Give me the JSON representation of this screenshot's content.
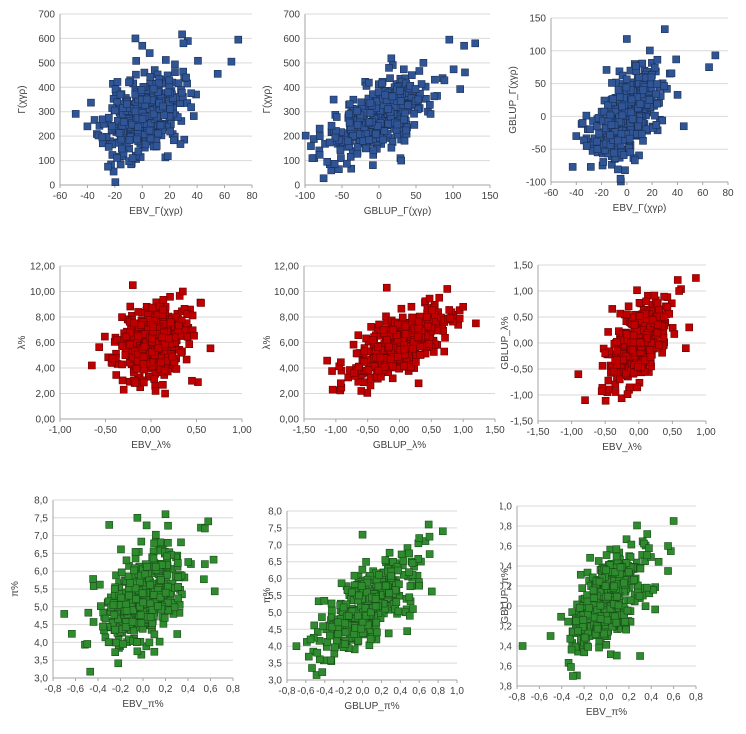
{
  "chart_data": [
    {
      "id": "gamma-ebv",
      "type": "scatter",
      "title": "",
      "xlabel": "EBV_Γ(χγρ)",
      "ylabel": "Γ(χγρ)",
      "xlim": [
        -60,
        80
      ],
      "ylim": [
        0,
        700
      ],
      "xticks": [
        -60,
        -40,
        -20,
        0,
        20,
        40,
        60,
        80
      ],
      "yticks": [
        0,
        100,
        200,
        300,
        400,
        500,
        600,
        700
      ],
      "xtick_labels": [
        "-60",
        "-40",
        "-20",
        "0",
        "20",
        "40",
        "60",
        "80"
      ],
      "ytick_labels": [
        "0",
        "100",
        "200",
        "300",
        "400",
        "500",
        "600",
        "700"
      ],
      "color": "#2f5597",
      "cloud": {
        "n": 400,
        "mx": 0,
        "sx": 14,
        "my": 280,
        "sy": 85,
        "r": 0.35,
        "seed": 11
      },
      "points": [
        [
          70,
          595
        ],
        [
          65,
          505
        ],
        [
          30,
          580
        ],
        [
          0,
          570
        ],
        [
          -40,
          240
        ],
        [
          -25,
          75
        ],
        [
          55,
          455
        ],
        [
          -5,
          600
        ]
      ]
    },
    {
      "id": "gamma-gblup",
      "type": "scatter",
      "title": "",
      "xlabel": "GBLUP_Γ(χγρ)",
      "ylabel": "Γ(χγρ)",
      "xlim": [
        -100,
        150
      ],
      "ylim": [
        0,
        700
      ],
      "xticks": [
        -100,
        -50,
        0,
        50,
        100,
        150
      ],
      "yticks": [
        0,
        100,
        200,
        300,
        400,
        500,
        600,
        700
      ],
      "xtick_labels": [
        "-100",
        "-50",
        "0",
        "50",
        "100",
        "150"
      ],
      "ytick_labels": [
        "0",
        "100",
        "200",
        "300",
        "400",
        "500",
        "600",
        "700"
      ],
      "color": "#2f5597",
      "cloud": {
        "n": 400,
        "mx": 0,
        "sx": 35,
        "my": 280,
        "sy": 85,
        "r": 0.65,
        "seed": 22
      },
      "points": [
        [
          130,
          580
        ],
        [
          95,
          595
        ],
        [
          115,
          570
        ],
        [
          -90,
          110
        ],
        [
          -80,
          200
        ],
        [
          60,
          500
        ],
        [
          30,
          100
        ],
        [
          -70,
          95
        ]
      ]
    },
    {
      "id": "gamma-gblup-vs-ebv",
      "type": "scatter",
      "title": "",
      "xlabel": "EBV_Γ(χγρ)",
      "ylabel": "GBLUP_Γ(χγρ)",
      "xlim": [
        -60,
        80
      ],
      "ylim": [
        -100,
        150
      ],
      "xticks": [
        -60,
        -40,
        -20,
        0,
        20,
        40,
        60,
        80
      ],
      "yticks": [
        -100,
        -50,
        0,
        50,
        100,
        150
      ],
      "xtick_labels": [
        "-60",
        "-40",
        "-20",
        "0",
        "20",
        "40",
        "60",
        "80"
      ],
      "ytick_labels": [
        "-100",
        "-50",
        "0",
        "50",
        "100",
        "150"
      ],
      "color": "#2f5597",
      "cloud": {
        "n": 400,
        "mx": 0,
        "sx": 14,
        "my": 0,
        "sy": 35,
        "r": 0.55,
        "seed": 33
      },
      "points": [
        [
          30,
          133
        ],
        [
          0,
          118
        ],
        [
          70,
          93
        ],
        [
          65,
          75
        ],
        [
          -40,
          -30
        ],
        [
          -5,
          -95
        ],
        [
          45,
          -15
        ],
        [
          -35,
          -10
        ]
      ]
    },
    {
      "id": "lambda-ebv",
      "type": "scatter",
      "title": "",
      "xlabel": "EBV_λ%",
      "ylabel": "λ%",
      "xlim": [
        -1.0,
        1.0
      ],
      "ylim": [
        0,
        12
      ],
      "xticks": [
        -1.0,
        -0.5,
        0.0,
        0.5,
        1.0
      ],
      "yticks": [
        0,
        2,
        4,
        6,
        8,
        10,
        12
      ],
      "xtick_labels": [
        "-1,00",
        "-0,50",
        "0,00",
        "0,50",
        "1,00"
      ],
      "ytick_labels": [
        "0,00",
        "2,00",
        "4,00",
        "6,00",
        "8,00",
        "10,00",
        "12,00"
      ],
      "color": "#c00000",
      "cloud": {
        "n": 400,
        "mx": 0,
        "sx": 0.2,
        "my": 5.8,
        "sy": 1.4,
        "r": 0.35,
        "seed": 44
      },
      "points": [
        [
          -0.65,
          4.2
        ],
        [
          0.45,
          3.0
        ],
        [
          0.55,
          9.1
        ],
        [
          -0.2,
          10.5
        ],
        [
          0.35,
          10.0
        ],
        [
          -0.3,
          2.3
        ],
        [
          0.05,
          2.2
        ]
      ]
    },
    {
      "id": "lambda-gblup",
      "type": "scatter",
      "title": "",
      "xlabel": "GBLUP_λ%",
      "ylabel": "λ%",
      "xlim": [
        -1.5,
        1.5
      ],
      "ylim": [
        0,
        12
      ],
      "xticks": [
        -1.5,
        -1.0,
        -0.5,
        0.0,
        0.5,
        1.0,
        1.5
      ],
      "yticks": [
        0,
        2,
        4,
        6,
        8,
        10,
        12
      ],
      "xtick_labels": [
        "-1,50",
        "-1,00",
        "-0,50",
        "0,00",
        "0,50",
        "1,00",
        "1,50"
      ],
      "ytick_labels": [
        "0,00",
        "2,00",
        "4,00",
        "6,00",
        "8,00",
        "10,00",
        "12,00"
      ],
      "color": "#c00000",
      "cloud": {
        "n": 400,
        "mx": 0,
        "sx": 0.38,
        "my": 5.8,
        "sy": 1.4,
        "r": 0.65,
        "seed": 55
      },
      "points": [
        [
          -1.05,
          2.3
        ],
        [
          1.2,
          7.5
        ],
        [
          0.75,
          10.2
        ],
        [
          -0.2,
          10.3
        ],
        [
          -0.6,
          2.2
        ],
        [
          0.3,
          2.8
        ],
        [
          1.0,
          8.8
        ]
      ]
    },
    {
      "id": "lambda-gblup-vs-ebv",
      "type": "scatter",
      "title": "",
      "xlabel": "EBV_λ%",
      "ylabel": "GBLUP_λ%",
      "xlim": [
        -1.5,
        1.0
      ],
      "ylim": [
        -1.5,
        1.5
      ],
      "xticks": [
        -1.5,
        -1.0,
        -0.5,
        0.0,
        0.5,
        1.0
      ],
      "yticks": [
        -1.5,
        -1.0,
        -0.5,
        0.0,
        0.5,
        1.0,
        1.5
      ],
      "xtick_labels": [
        "-1,50",
        "-1,00",
        "-0,50",
        "0,00",
        "0,50",
        "1,00"
      ],
      "ytick_labels": [
        "-1,50",
        "-1,00",
        "-0,50",
        "0,00",
        "0,50",
        "1,00",
        "1,50"
      ],
      "color": "#c00000",
      "cloud": {
        "n": 400,
        "mx": 0,
        "sx": 0.2,
        "my": 0,
        "sy": 0.38,
        "r": 0.6,
        "seed": 66
      },
      "points": [
        [
          0.85,
          1.25
        ],
        [
          -0.8,
          -1.1
        ],
        [
          -0.9,
          -0.6
        ],
        [
          0.6,
          1.0
        ],
        [
          0.75,
          0.3
        ],
        [
          -0.5,
          -0.2
        ],
        [
          0.7,
          -0.1
        ]
      ]
    },
    {
      "id": "pi-ebv",
      "type": "scatter",
      "title": "",
      "xlabel": "EBV_π%",
      "ylabel": "π%",
      "xlim": [
        -0.8,
        0.8
      ],
      "ylim": [
        3.0,
        8.0
      ],
      "xticks": [
        -0.8,
        -0.6,
        -0.4,
        -0.2,
        0.0,
        0.2,
        0.4,
        0.6,
        0.8
      ],
      "yticks": [
        3.0,
        3.5,
        4.0,
        4.5,
        5.0,
        5.5,
        6.0,
        6.5,
        7.0,
        7.5,
        8.0
      ],
      "xtick_labels": [
        "-0,8",
        "-0,6",
        "-0,4",
        "-0,2",
        "0,0",
        "0,2",
        "0,4",
        "0,6",
        "0,8"
      ],
      "ytick_labels": [
        "3,0",
        "3,5",
        "4,0",
        "4,5",
        "5,0",
        "5,5",
        "6,0",
        "6,5",
        "7,0",
        "7,5",
        "8,0"
      ],
      "color": "#2e8b2e",
      "cloud": {
        "n": 400,
        "mx": 0,
        "sx": 0.18,
        "my": 5.2,
        "sy": 0.75,
        "r": 0.4,
        "seed": 77
      },
      "points": [
        [
          0.58,
          7.4
        ],
        [
          0.55,
          7.2
        ],
        [
          0.2,
          7.6
        ],
        [
          -0.3,
          7.3
        ],
        [
          -0.7,
          4.8
        ],
        [
          -0.05,
          7.5
        ],
        [
          -0.05,
          3.75
        ],
        [
          0.55,
          6.2
        ]
      ]
    },
    {
      "id": "pi-gblup",
      "type": "scatter",
      "title": "",
      "xlabel": "GBLUP_π%",
      "ylabel": "π%",
      "xlim": [
        -0.8,
        1.0
      ],
      "ylim": [
        3.0,
        8.0
      ],
      "xticks": [
        -0.8,
        -0.6,
        -0.4,
        -0.2,
        0.0,
        0.2,
        0.4,
        0.6,
        0.8,
        1.0
      ],
      "yticks": [
        3.0,
        3.5,
        4.0,
        4.5,
        5.0,
        5.5,
        6.0,
        6.5,
        7.0,
        7.5,
        8.0
      ],
      "xtick_labels": [
        "-0,8",
        "-0,6",
        "-0,4",
        "-0,2",
        "0,0",
        "0,2",
        "0,4",
        "0,6",
        "0,8",
        "1,0"
      ],
      "ytick_labels": [
        "3,0",
        "3,5",
        "4,0",
        "4,5",
        "5,0",
        "5,5",
        "6,0",
        "6,5",
        "7,0",
        "7,5",
        "8,0"
      ],
      "color": "#2e8b2e",
      "cloud": {
        "n": 400,
        "mx": 0.05,
        "sx": 0.25,
        "my": 5.2,
        "sy": 0.75,
        "r": 0.7,
        "seed": 88
      },
      "points": [
        [
          0.7,
          7.6
        ],
        [
          0.85,
          7.4
        ],
        [
          0.6,
          7.2
        ],
        [
          -0.7,
          4.0
        ],
        [
          -0.55,
          4.2
        ],
        [
          0.0,
          7.3
        ],
        [
          0.5,
          4.9
        ]
      ]
    },
    {
      "id": "pi-gblup-vs-ebv",
      "type": "scatter",
      "title": "",
      "xlabel": "EBV_π%",
      "ylabel": "GBLUP_π%",
      "xlim": [
        -0.8,
        0.8
      ],
      "ylim": [
        -0.8,
        1.0
      ],
      "xticks": [
        -0.8,
        -0.6,
        -0.4,
        -0.2,
        0.0,
        0.2,
        0.4,
        0.6,
        0.8
      ],
      "yticks": [
        -0.8,
        -0.6,
        -0.4,
        -0.2,
        0.0,
        0.2,
        0.4,
        0.6,
        0.8,
        1.0
      ],
      "xtick_labels": [
        "-0,8",
        "-0,6",
        "-0,4",
        "-0,2",
        "0,0",
        "0,2",
        "0,4",
        "0,6",
        "0,8"
      ],
      "ytick_labels": [
        "-0,8",
        "-0,6",
        "-0,4",
        "-0,2",
        "0,0",
        "0,2",
        "0,4",
        "0,6",
        "0,8",
        "1,0"
      ],
      "color": "#2e8b2e",
      "cloud": {
        "n": 400,
        "mx": 0,
        "sx": 0.18,
        "my": 0.05,
        "sy": 0.27,
        "r": 0.6,
        "seed": 99
      },
      "points": [
        [
          0.6,
          0.85
        ],
        [
          -0.75,
          -0.4
        ],
        [
          -0.3,
          -0.7
        ],
        [
          0.55,
          0.6
        ],
        [
          -0.5,
          -0.3
        ],
        [
          0.3,
          -0.5
        ],
        [
          0.55,
          0.35
        ]
      ]
    }
  ]
}
